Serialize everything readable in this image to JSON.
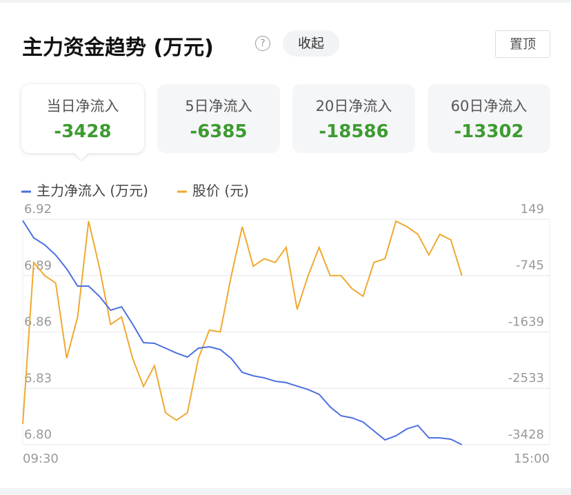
{
  "header": {
    "title": "主力资金趋势 (万元)",
    "help": "?",
    "collapse": "收起",
    "pin": "置顶"
  },
  "tabs": [
    {
      "label": "当日净流入",
      "value": -3428
    },
    {
      "label": "5日净流入",
      "value": -6385
    },
    {
      "label": "20日净流入",
      "value": -18586
    },
    {
      "label": "60日净流入",
      "value": -13302
    }
  ],
  "chart_data": {
    "type": "line",
    "categories": [
      "09:30",
      null,
      null,
      null,
      null,
      null,
      null,
      null,
      null,
      null,
      null,
      null,
      null,
      null,
      null,
      null,
      null,
      null,
      null,
      null,
      null,
      null,
      null,
      null,
      null,
      null,
      null,
      null,
      null,
      null,
      null,
      null,
      null,
      null,
      null,
      null,
      null,
      null,
      null,
      null,
      null,
      null,
      null,
      null,
      null,
      null,
      null,
      null,
      "15:00"
    ],
    "ylim": [
      6.8,
      6.92
    ],
    "yticks": [
      {
        "value": 6.8,
        "label": "6.80"
      },
      6.83,
      6.86,
      6.89,
      6.92
    ],
    "y2lim": [
      -3428,
      149
    ],
    "y2ticks": [
      -3428,
      -2533,
      -1639,
      -745,
      149
    ],
    "grid": true,
    "series": [
      {
        "name": "主力净流入 (万元)",
        "color": "#4b6fe0",
        "axis": "y2",
        "values": [
          127,
          -146,
          -256,
          -420,
          -639,
          -912,
          -912,
          -1076,
          -1295,
          -1240,
          -1514,
          -1809,
          -1820,
          -1897,
          -1974,
          -2039,
          -1897,
          -1875,
          -1919,
          -2061,
          -2280,
          -2335,
          -2368,
          -2422,
          -2444,
          -2499,
          -2554,
          -2630,
          -2827,
          -2970,
          -3002,
          -3068,
          -3210,
          -3353,
          -3287,
          -3178,
          -3123,
          -3320,
          -3320,
          -3342,
          -3428,
          null,
          null,
          null,
          null,
          null,
          null,
          null,
          null
        ]
      },
      {
        "name": "股价 (元)",
        "color": "#f0a830",
        "values": [
          6.811,
          6.897,
          6.89,
          6.886,
          6.846,
          6.868,
          6.919,
          6.894,
          6.864,
          6.868,
          6.846,
          6.831,
          6.842,
          6.817,
          6.813,
          6.817,
          6.846,
          6.861,
          6.86,
          6.89,
          6.916,
          6.895,
          6.899,
          6.897,
          6.905,
          6.872,
          6.89,
          6.905,
          6.89,
          6.89,
          6.883,
          6.879,
          6.897,
          6.899,
          6.919,
          6.916,
          6.912,
          6.901,
          6.912,
          6.909,
          6.89,
          null,
          null,
          null,
          null,
          null,
          null,
          null,
          null
        ]
      }
    ]
  }
}
